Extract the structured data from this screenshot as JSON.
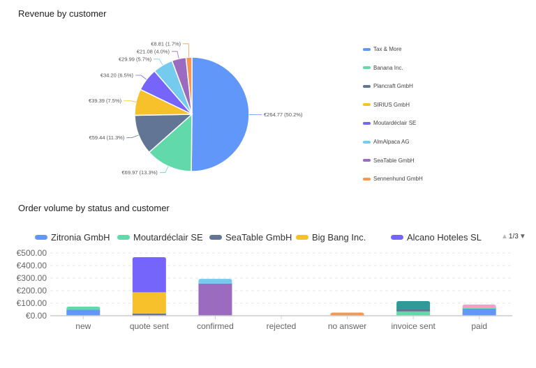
{
  "chart_data": [
    {
      "type": "pie",
      "title": "Revenue by customer",
      "legend_position": "right",
      "slices": [
        {
          "name": "Tax & More",
          "value": 264.77,
          "label": "€264.77 (50.2%)",
          "color": "#6297fa"
        },
        {
          "name": "Banana Inc.",
          "value": 69.97,
          "label": "€69.97 (13.3%)",
          "color": "#62d9aa"
        },
        {
          "name": "Plancraft GmbH",
          "value": 59.44,
          "label": "€59.44 (11.3%)",
          "color": "#627595"
        },
        {
          "name": "SIRIUS GmbH",
          "value": 39.39,
          "label": "€39.39 (7.5%)",
          "color": "#f7c12c"
        },
        {
          "name": "Moutardéclair SE",
          "value": 34.2,
          "label": "€34.20 (6.5%)",
          "color": "#7565fa"
        },
        {
          "name": "AlmAlpaca AG",
          "value": 29.99,
          "label": "€29.99 (5.7%)",
          "color": "#75cbed"
        },
        {
          "name": "SeaTable GmbH",
          "value": 21.08,
          "label": "€21.08 (4.0%)",
          "color": "#9b6bbf"
        },
        {
          "name": "Sennenhund GmbH",
          "value": 8.81,
          "label": "€8.81 (1.7%)",
          "color": "#fb9550"
        }
      ]
    },
    {
      "type": "bar",
      "stacked": true,
      "title": "Order volume by status and customer",
      "legend_position": "top",
      "legend_page": "1/3",
      "categories": [
        "new",
        "quote sent",
        "confirmed",
        "rejected",
        "no answer",
        "invoice sent",
        "paid"
      ],
      "yticks": [
        "€0.00",
        "€100.00",
        "€200.00",
        "€300.00",
        "€400.00",
        "€500.00"
      ],
      "ylim": [
        0,
        500
      ],
      "grid": true,
      "series": [
        {
          "name": "Zitronia GmbH",
          "color": "#6297fa",
          "values": [
            47,
            0,
            0,
            0,
            0,
            0,
            56
          ]
        },
        {
          "name": "Moutardéclair SE",
          "color": "#62d9aa",
          "values": [
            25,
            0,
            0,
            0,
            0,
            34,
            5
          ]
        },
        {
          "name": "SeaTable GmbH",
          "color": "#627595",
          "values": [
            0,
            17,
            0,
            0,
            0,
            16,
            0
          ]
        },
        {
          "name": "Big Bang Inc.",
          "color": "#f7c12c",
          "values": [
            0,
            170,
            0,
            0,
            0,
            0,
            0
          ]
        },
        {
          "name": "Alcano Hoteles SL",
          "color": "#7565fa",
          "values": [
            0,
            280,
            0,
            0,
            0,
            0,
            0
          ]
        },
        {
          "color": "#9b6bbf",
          "values": [
            0,
            0,
            256,
            0,
            0,
            0,
            0
          ]
        },
        {
          "color": "#75cbed",
          "values": [
            0,
            0,
            38,
            0,
            0,
            0,
            0
          ]
        },
        {
          "color": "#fb9550",
          "values": [
            0,
            0,
            0,
            0,
            25,
            0,
            0
          ]
        },
        {
          "color": "#2f9a98",
          "values": [
            0,
            0,
            0,
            0,
            0,
            67,
            0
          ]
        },
        {
          "color": "#fb9dc5",
          "values": [
            0,
            0,
            0,
            0,
            0,
            0,
            28
          ]
        }
      ]
    }
  ]
}
